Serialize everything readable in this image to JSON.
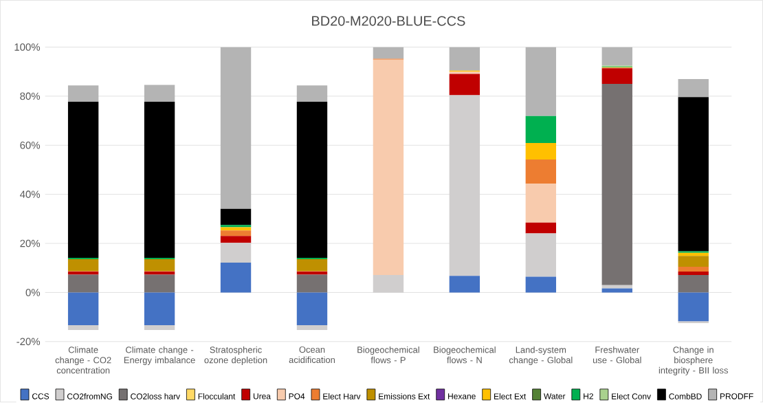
{
  "chart_data": {
    "type": "bar",
    "title": "BD20-M2020-BLUE-CCS",
    "stacked": true,
    "categories": [
      "Climate change - CO2 concentration",
      "Climate change - Energy imbalance",
      "Stratospheric ozone depletion",
      "Ocean acidification",
      "Biogeochemical flows - P",
      "Biogeochemical flows - N",
      "Land-system change - Global",
      "Freshwater use - Global",
      "Change in biosphere integrity - BII loss"
    ],
    "series": [
      {
        "name": "CCS",
        "color": "#4472c4",
        "values": [
          -13.3,
          -13.3,
          12.2,
          -13.3,
          0,
          6.8,
          6.4,
          1.7,
          -11.7
        ]
      },
      {
        "name": "CO2fromNG",
        "color": "#d0cece",
        "values": [
          -2.0,
          -2.0,
          8.0,
          -2.0,
          7.1,
          73.6,
          17.7,
          1.3,
          -0.8
        ]
      },
      {
        "name": "CO2loss harv",
        "color": "#767171",
        "values": [
          7.3,
          7.3,
          0,
          7.3,
          0,
          0,
          0,
          82.0,
          7.1
        ]
      },
      {
        "name": "Flocculant",
        "color": "#ffd966",
        "values": [
          0,
          0,
          0,
          0,
          0,
          0,
          0,
          0,
          0
        ]
      },
      {
        "name": "Urea",
        "color": "#c00000",
        "values": [
          1.2,
          1.2,
          2.8,
          1.2,
          0,
          8.7,
          4.4,
          6.4,
          1.4
        ]
      },
      {
        "name": "PO4",
        "color": "#f8cbad",
        "values": [
          0,
          0,
          0,
          0,
          87.8,
          0.9,
          15.8,
          0,
          0
        ]
      },
      {
        "name": "Elect Harv",
        "color": "#ed7d31",
        "values": [
          0.2,
          0.2,
          2.3,
          0.2,
          0.3,
          0,
          9.9,
          0.2,
          2.0
        ]
      },
      {
        "name": "Emissions Ext",
        "color": "#bf9000",
        "values": [
          4.9,
          4.9,
          0,
          4.9,
          0,
          0,
          0,
          0,
          4.4
        ]
      },
      {
        "name": "Hexane",
        "color": "#7030a0",
        "values": [
          0,
          0,
          0,
          0,
          0,
          0,
          0,
          0,
          0
        ]
      },
      {
        "name": "Elect Ext",
        "color": "#ffc000",
        "values": [
          0,
          0,
          1.3,
          0,
          0,
          0.4,
          6.7,
          0.2,
          1.3
        ]
      },
      {
        "name": "Water",
        "color": "#548235",
        "values": [
          0,
          0,
          0,
          0,
          0,
          0,
          0,
          0,
          0
        ]
      },
      {
        "name": "H2",
        "color": "#00b050",
        "values": [
          0.5,
          0.5,
          0.9,
          0.5,
          0,
          0,
          11.0,
          0.3,
          0.6
        ]
      },
      {
        "name": "Elect Conv",
        "color": "#a9d18e",
        "values": [
          0,
          0,
          0,
          0,
          0,
          0,
          0,
          0.3,
          0
        ]
      },
      {
        "name": "CombBD",
        "color": "#000000",
        "values": [
          63.6,
          63.6,
          6.6,
          63.6,
          0,
          0,
          0,
          0,
          62.8
        ]
      },
      {
        "name": "PRODFF",
        "color": "#b4b4b4",
        "values": [
          6.7,
          6.9,
          65.9,
          6.7,
          4.8,
          9.6,
          28.1,
          7.6,
          7.4
        ]
      }
    ],
    "ylim": [
      -20,
      100
    ],
    "yticks": [
      {
        "value": -20,
        "label": "-20%"
      },
      {
        "value": 0,
        "label": "0%"
      },
      {
        "value": 20,
        "label": "20%"
      },
      {
        "value": 40,
        "label": "40%"
      },
      {
        "value": 60,
        "label": "60%"
      },
      {
        "value": 80,
        "label": "80%"
      },
      {
        "value": 100,
        "label": "100%"
      }
    ],
    "grid": "y",
    "legend": "bottom"
  }
}
